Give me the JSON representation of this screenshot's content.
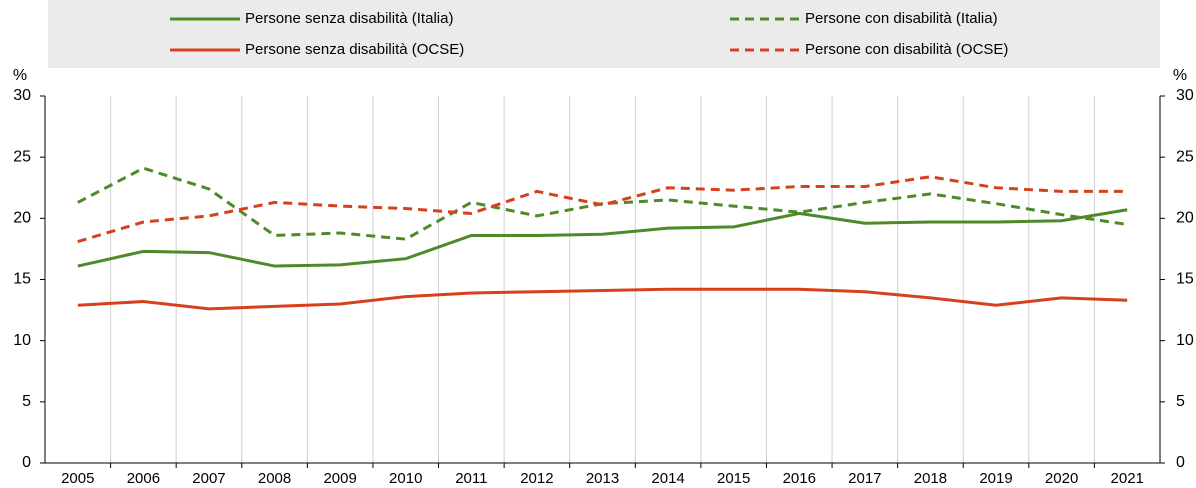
{
  "chart_data": {
    "type": "line",
    "categories": [
      "2005",
      "2006",
      "2007",
      "2008",
      "2009",
      "2010",
      "2011",
      "2012",
      "2013",
      "2014",
      "2015",
      "2016",
      "2017",
      "2018",
      "2019",
      "2020",
      "2021"
    ],
    "series": [
      {
        "name": "Persone senza disabilità (Italia)",
        "color": "#4e8a2a",
        "dashed": false,
        "values": [
          16.1,
          17.3,
          17.2,
          16.1,
          16.2,
          16.7,
          18.6,
          18.6,
          18.7,
          19.2,
          19.3,
          20.4,
          19.6,
          19.7,
          19.7,
          19.8,
          20.7
        ]
      },
      {
        "name": "Persone con disabilità (Italia)",
        "color": "#4e8a2a",
        "dashed": true,
        "values": [
          21.3,
          24.1,
          22.4,
          18.6,
          18.8,
          18.3,
          21.3,
          20.2,
          21.2,
          21.5,
          21.0,
          20.5,
          21.3,
          22.0,
          21.2,
          20.3,
          19.5
        ]
      },
      {
        "name": "Persone senza disabilità (OCSE)",
        "color": "#d8401c",
        "dashed": false,
        "values": [
          12.9,
          13.2,
          12.6,
          12.8,
          13.0,
          13.6,
          13.9,
          14.0,
          14.1,
          14.2,
          14.2,
          14.2,
          14.0,
          13.5,
          12.9,
          13.5,
          13.3
        ]
      },
      {
        "name": "Persone con disabilità (OCSE)",
        "color": "#d8401c",
        "dashed": true,
        "values": [
          18.1,
          19.7,
          20.2,
          21.3,
          21.0,
          20.8,
          20.4,
          22.2,
          21.1,
          22.5,
          22.3,
          22.6,
          22.6,
          23.4,
          22.5,
          22.2,
          22.2
        ]
      }
    ],
    "y_unit": "%",
    "y2_unit": "%",
    "ylim": [
      0,
      30
    ],
    "yticks": [
      0,
      5,
      10,
      15,
      20,
      25,
      30
    ],
    "y2lim": [
      0,
      30
    ],
    "y2ticks": [
      0,
      5,
      10,
      15,
      20,
      25,
      30
    ]
  }
}
